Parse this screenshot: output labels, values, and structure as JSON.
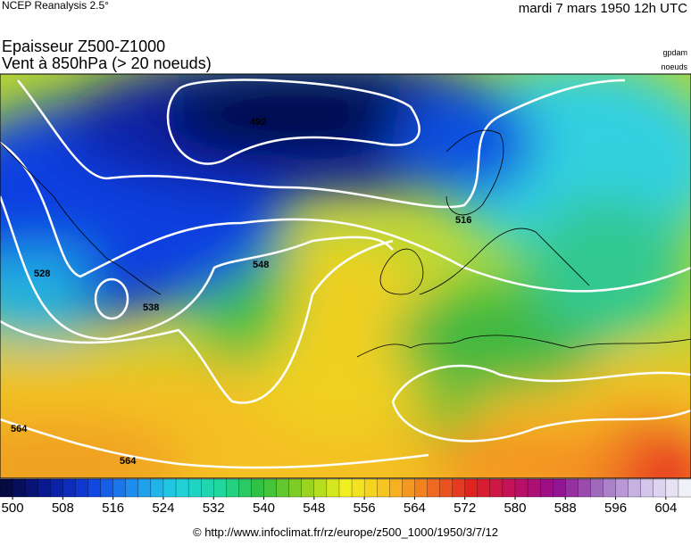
{
  "header": {
    "source": "NCEP Reanalysis 2.5°",
    "date": "mardi 7 mars 1950 12h UTC"
  },
  "title": {
    "line1": "Epaisseur Z500-Z1000",
    "line2": "Vent à 850hPa (> 20 noeuds)",
    "unit_thickness": "gpdam",
    "unit_wind": "noeuds"
  },
  "contour_labels": [
    "492",
    "516",
    "528",
    "538",
    "548",
    "564",
    "564"
  ],
  "colorbar": {
    "range": [
      498,
      608
    ],
    "step": 2,
    "ticks": [
      500,
      508,
      516,
      524,
      532,
      540,
      548,
      556,
      564,
      572,
      580,
      588,
      596,
      604
    ],
    "color_stops": [
      "#050a40",
      "#0a1a9a",
      "#1040e0",
      "#2090f0",
      "#20d0e0",
      "#20d8a0",
      "#30c040",
      "#90d020",
      "#f0f020",
      "#f8c020",
      "#f07020",
      "#e02020",
      "#c01060",
      "#901090",
      "#a070c0",
      "#d0c0e8",
      "#f0f0f8"
    ]
  },
  "footer": "© http://www.infoclimat.fr/rz/europe/z500_1000/1950/3/7/12"
}
